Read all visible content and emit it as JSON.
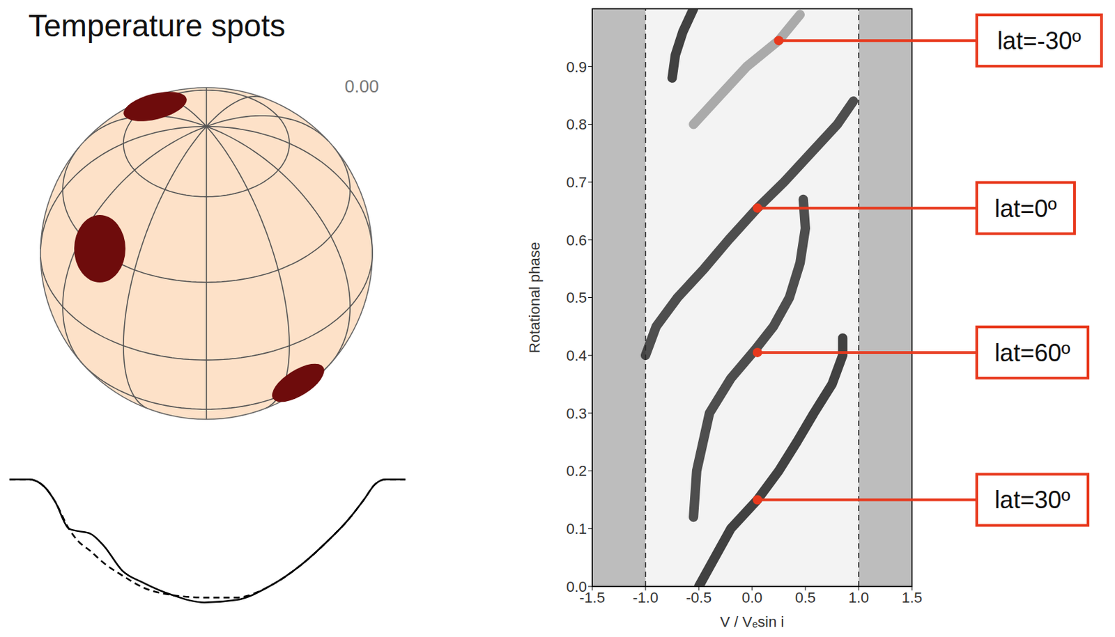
{
  "title": "Temperature spots",
  "phase_label": "0.00",
  "chart_data": [
    {
      "type": "line",
      "x": [
        -1.3,
        -1.17,
        -1.07,
        -1.0,
        -0.91,
        -0.85,
        -0.77,
        -0.68,
        -0.56,
        -0.42,
        -0.23,
        -0.02,
        0.19,
        0.42,
        0.61,
        0.79,
        0.93,
        1.03,
        1.1,
        1.17,
        1.3
      ],
      "series": [
        {
          "color": "#000000",
          "line_style": "solid",
          "values": [
            1.0,
            1.0,
            0.97,
            0.91,
            0.8,
            0.79,
            0.78,
            0.73,
            0.63,
            0.58,
            0.53,
            0.5,
            0.51,
            0.57,
            0.65,
            0.75,
            0.84,
            0.92,
            0.98,
            1.0,
            1.0
          ]
        },
        {
          "color": "#000000",
          "line_style": "dashed",
          "values": [
            1.0,
            1.0,
            0.97,
            0.91,
            0.8,
            0.75,
            0.71,
            0.66,
            0.61,
            0.56,
            0.53,
            0.52,
            0.52,
            0.57,
            0.65,
            0.75,
            0.84,
            0.92,
            0.98,
            1.0,
            1.0
          ]
        }
      ],
      "xlim": [
        -1.3,
        1.3
      ],
      "ylim": [
        0.48,
        1.02
      ],
      "tick_labels": false
    },
    {
      "type": "scatter",
      "x_label": "V / Vₑsin i",
      "y_label": "Rotational phase",
      "xlim": [
        -1.5,
        1.5
      ],
      "ylim": [
        0,
        1
      ],
      "xticks": [
        -1.5,
        {
          "value": -1,
          "label": "-1.0"
        },
        -0.5,
        {
          "value": 0,
          "label": "0.0"
        },
        0.5,
        {
          "value": 1,
          "label": "1.0"
        },
        1.5
      ],
      "yticks": [
        {
          "value": 0,
          "label": "0.0"
        },
        0.1,
        0.2,
        0.3,
        0.4,
        0.5,
        0.6,
        0.7,
        0.8,
        0.9
      ],
      "dashed_lines": [
        -1,
        1
      ],
      "series": [
        {
          "color": "#1a1a1a",
          "x": [
            -0.5,
            -0.35,
            -0.2,
            0.05,
            0.25,
            0.42,
            0.58,
            0.75,
            0.85,
            0.85
          ],
          "y": [
            0.0,
            0.05,
            0.1,
            0.15,
            0.2,
            0.25,
            0.3,
            0.35,
            0.4,
            0.43
          ]
        },
        {
          "color": "#1a1a1a",
          "x": [
            -0.75,
            -0.72,
            -0.65,
            -0.55
          ],
          "y": [
            0.88,
            0.92,
            0.96,
            1.0
          ]
        },
        {
          "color": "#2a2a2a",
          "x": [
            -0.55,
            -0.52,
            -0.4,
            -0.2,
            0.03,
            0.2,
            0.35,
            0.45,
            0.5,
            0.48
          ],
          "y": [
            0.12,
            0.2,
            0.3,
            0.36,
            0.41,
            0.45,
            0.5,
            0.56,
            0.62,
            0.67
          ]
        },
        {
          "color": "#2a2a2a",
          "x": [
            -1.0,
            -0.9,
            -0.7,
            -0.45,
            -0.22,
            0.05,
            0.3,
            0.55,
            0.8,
            0.95
          ],
          "y": [
            0.4,
            0.45,
            0.5,
            0.55,
            0.6,
            0.655,
            0.7,
            0.75,
            0.8,
            0.84
          ]
        },
        {
          "color": "#9a9a9a",
          "x": [
            -0.55,
            -0.3,
            -0.05,
            0.25,
            0.45
          ],
          "y": [
            0.8,
            0.85,
            0.9,
            0.945,
            0.99
          ]
        }
      ],
      "annotations": [
        {
          "text": "lat=-30º",
          "x": 0.25,
          "y": 0.945
        },
        {
          "text": "lat=0º",
          "x": 0.05,
          "y": 0.655
        },
        {
          "text": "lat=60º",
          "x": 0.05,
          "y": 0.405
        },
        {
          "text": "lat=30º",
          "x": 0.05,
          "y": 0.15
        }
      ]
    }
  ]
}
